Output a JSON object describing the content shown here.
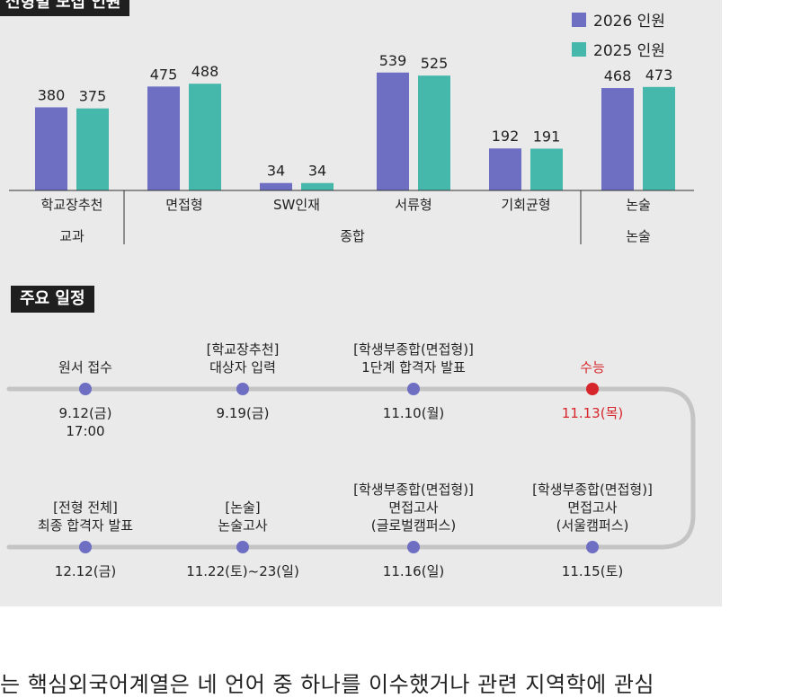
{
  "chart_heading": "전형별 모집 인원",
  "schedule_heading": "주요 일정",
  "legend": [
    {
      "label": "2026 인원",
      "color": "#6e6fc3"
    },
    {
      "label": "2025 인원",
      "color": "#46b8ab"
    }
  ],
  "chart_data": {
    "type": "bar",
    "categories": [
      "학교장추천",
      "면접형",
      "SW인재",
      "서류형",
      "기회균형",
      "논술"
    ],
    "groups": [
      {
        "label": "교과",
        "categories": [
          "학교장추천"
        ]
      },
      {
        "label": "종합",
        "categories": [
          "면접형",
          "SW인재",
          "서류형",
          "기회균형"
        ]
      },
      {
        "label": "논술",
        "categories": [
          "논술"
        ]
      }
    ],
    "series": [
      {
        "name": "2026 인원",
        "values": [
          380,
          475,
          34,
          539,
          192,
          468
        ]
      },
      {
        "name": "2025 인원",
        "values": [
          375,
          488,
          34,
          525,
          191,
          473
        ]
      }
    ],
    "ylim": [
      0,
      600
    ]
  },
  "timeline": {
    "top_row": [
      {
        "label_lines": [
          "원서 접수"
        ],
        "date_lines": [
          "9.12(금)",
          "17:00"
        ],
        "highlight": false
      },
      {
        "label_lines": [
          "[학교장추천]",
          "대상자 입력"
        ],
        "date_lines": [
          "9.19(금)"
        ],
        "highlight": false
      },
      {
        "label_lines": [
          "[학생부종합(면접형)]",
          "1단계 합격자 발표"
        ],
        "date_lines": [
          "11.10(월)"
        ],
        "highlight": false
      },
      {
        "label_lines": [
          "수능"
        ],
        "date_lines": [
          "11.13(목)"
        ],
        "highlight": true
      }
    ],
    "bottom_row": [
      {
        "label_lines": [
          "[전형 전체]",
          "최종 합격자 발표"
        ],
        "date_lines": [
          "12.12(금)"
        ],
        "highlight": false
      },
      {
        "label_lines": [
          "[논술]",
          "논술고사"
        ],
        "date_lines": [
          "11.22(토)~23(일)"
        ],
        "highlight": false
      },
      {
        "label_lines": [
          "[학생부종합(면접형)]",
          "면접고사",
          "(글로벌캠퍼스)"
        ],
        "date_lines": [
          "11.16(일)"
        ],
        "highlight": false
      },
      {
        "label_lines": [
          "[학생부종합(면접형)]",
          "면접고사",
          "(서울캠퍼스)"
        ],
        "date_lines": [
          "11.15(토)"
        ],
        "highlight": false
      }
    ],
    "colors": {
      "line": "#c4c4c4",
      "dot": "#6e6fc3",
      "highlight": "#d7262b"
    }
  },
  "article_text": "는 핵심외국어계열은 네 언어 중 하나를 이수했거나 관련 지역학에 관심"
}
